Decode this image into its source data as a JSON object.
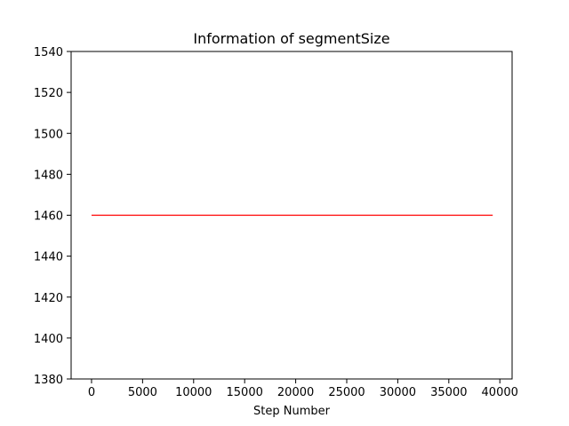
{
  "chart_data": {
    "type": "line",
    "title": "Information of segmentSize",
    "xlabel": "Step Number",
    "ylabel": "",
    "xlim": [
      -2000,
      41200
    ],
    "ylim": [
      1380,
      1540
    ],
    "xticks": [
      0,
      5000,
      10000,
      15000,
      20000,
      25000,
      30000,
      35000,
      40000
    ],
    "yticks": [
      1380,
      1400,
      1420,
      1440,
      1460,
      1480,
      1500,
      1520,
      1540
    ],
    "grid": false,
    "legend": "none",
    "series": [
      {
        "color": "#ff0000",
        "x": [
          0,
          39300
        ],
        "y": [
          1460,
          1460
        ]
      }
    ]
  }
}
